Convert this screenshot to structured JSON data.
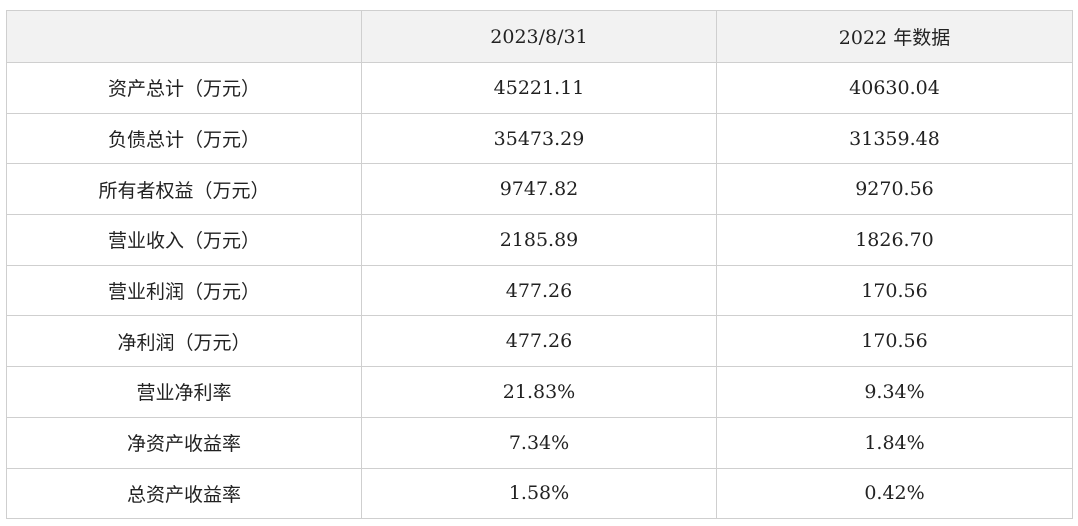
{
  "table": {
    "columns": [
      "2023/8/31",
      "2022 年数据"
    ],
    "rows": [
      [
        "资产总计（万元）",
        "45221.11",
        "40630.04"
      ],
      [
        "负债总计（万元）",
        "35473.29",
        "31359.48"
      ],
      [
        "所有者权益（万元）",
        "9747.82",
        "9270.56"
      ],
      [
        "营业收入（万元）",
        "2185.89",
        "1826.70"
      ],
      [
        "营业利润（万元）",
        "477.26",
        "170.56"
      ],
      [
        "净利润（万元）",
        "477.26",
        "170.56"
      ],
      [
        "营业净利率",
        "21.83%",
        "9.34%"
      ],
      [
        "净资产收益率",
        "7.34%",
        "1.84%"
      ],
      [
        "总资产收益率",
        "1.58%",
        "0.42%"
      ]
    ]
  }
}
